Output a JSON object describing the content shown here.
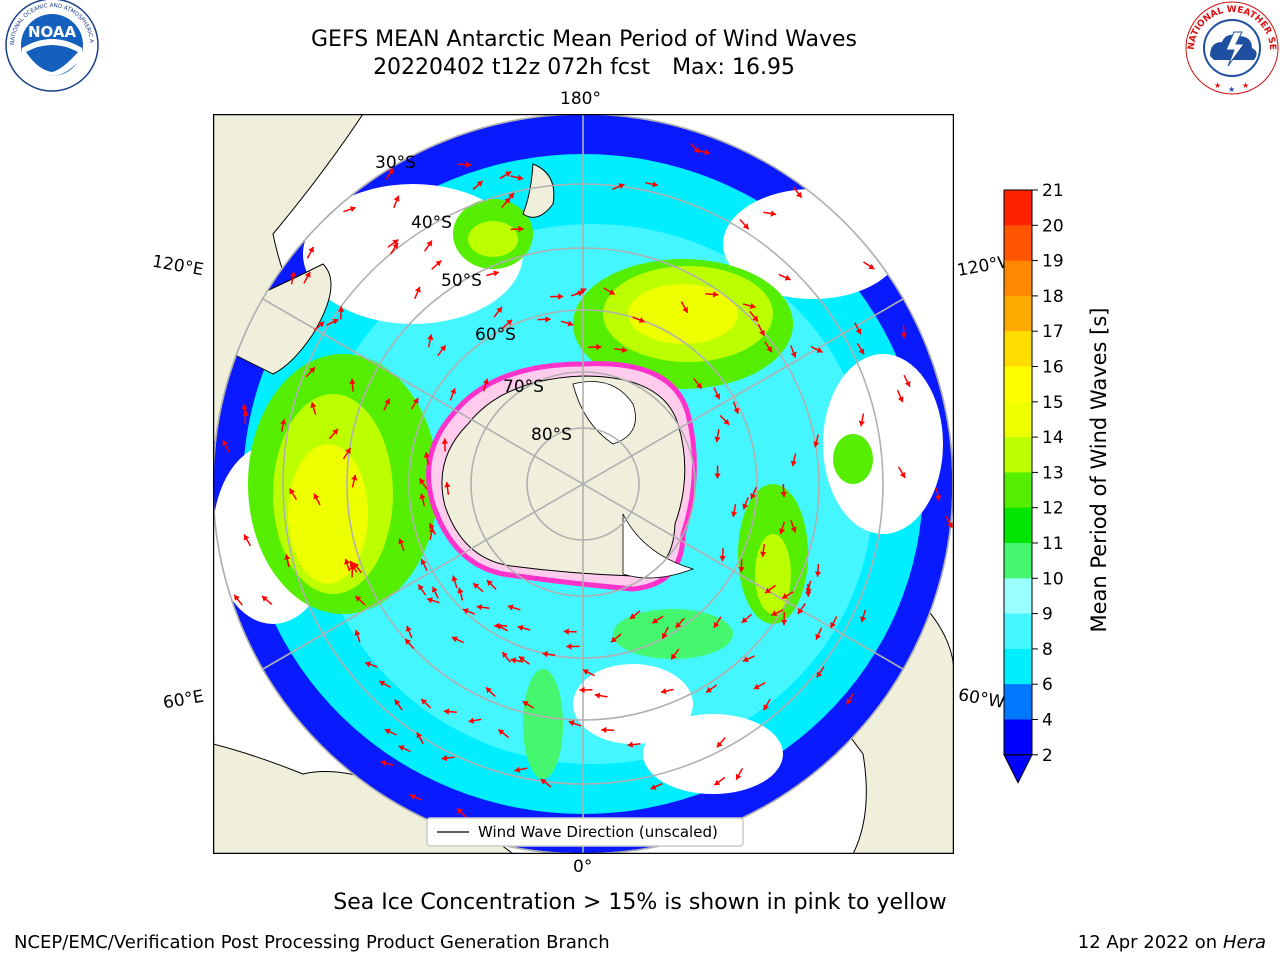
{
  "title": {
    "line1": "GEFS MEAN Antarctic Mean Period of Wind Waves",
    "run": "20220402 t12z 072h fcst",
    "max": "Max: 16.95"
  },
  "logos": {
    "left": "NOAA",
    "left_ring": "NATIONAL OCEANIC AND ATMOSPHERIC ADMINISTRATION · U.S. DEPARTMENT OF COMMERCE",
    "right_ring": "NATIONAL WEATHER SERVICE"
  },
  "map": {
    "projection": "south-polar-stereographic",
    "longitude_labels": {
      "top": "180°",
      "left_upper": "120°E",
      "right_upper": "120°W",
      "left_lower": "60°E",
      "right_lower": "60°W",
      "bottom": "0°"
    },
    "latitude_labels": [
      "30°S",
      "40°S",
      "50°S",
      "60°S",
      "70°S",
      "80°S"
    ],
    "legend": "Wind Wave Direction (unscaled)",
    "colors": {
      "land": "#efefdc",
      "ice_edge": "#ff33cc",
      "arrow": "#ff0000",
      "grid": "#b0b0b0"
    }
  },
  "colorbar": {
    "label": "Mean Period of Wind Waves [s]",
    "ticks": [
      "2",
      "4",
      "6",
      "8",
      "9",
      "10",
      "11",
      "12",
      "13",
      "14",
      "15",
      "16",
      "17",
      "18",
      "19",
      "20",
      "21"
    ],
    "colors": [
      "#0000ff",
      "#0077ff",
      "#00eeff",
      "#44f6ff",
      "#99ffff",
      "#44f76e",
      "#00e600",
      "#55ee00",
      "#bbff00",
      "#eeff00",
      "#ffff00",
      "#ffdd00",
      "#ffaa00",
      "#ff8800",
      "#ff5500",
      "#ff2200"
    ]
  },
  "caption": "Sea Ice Concentration > 15% is shown in pink to yellow",
  "footer": {
    "left": "NCEP/EMC/Verification Post Processing Product Generation Branch",
    "date": "12 Apr 2022 on",
    "machine": "Hera"
  }
}
